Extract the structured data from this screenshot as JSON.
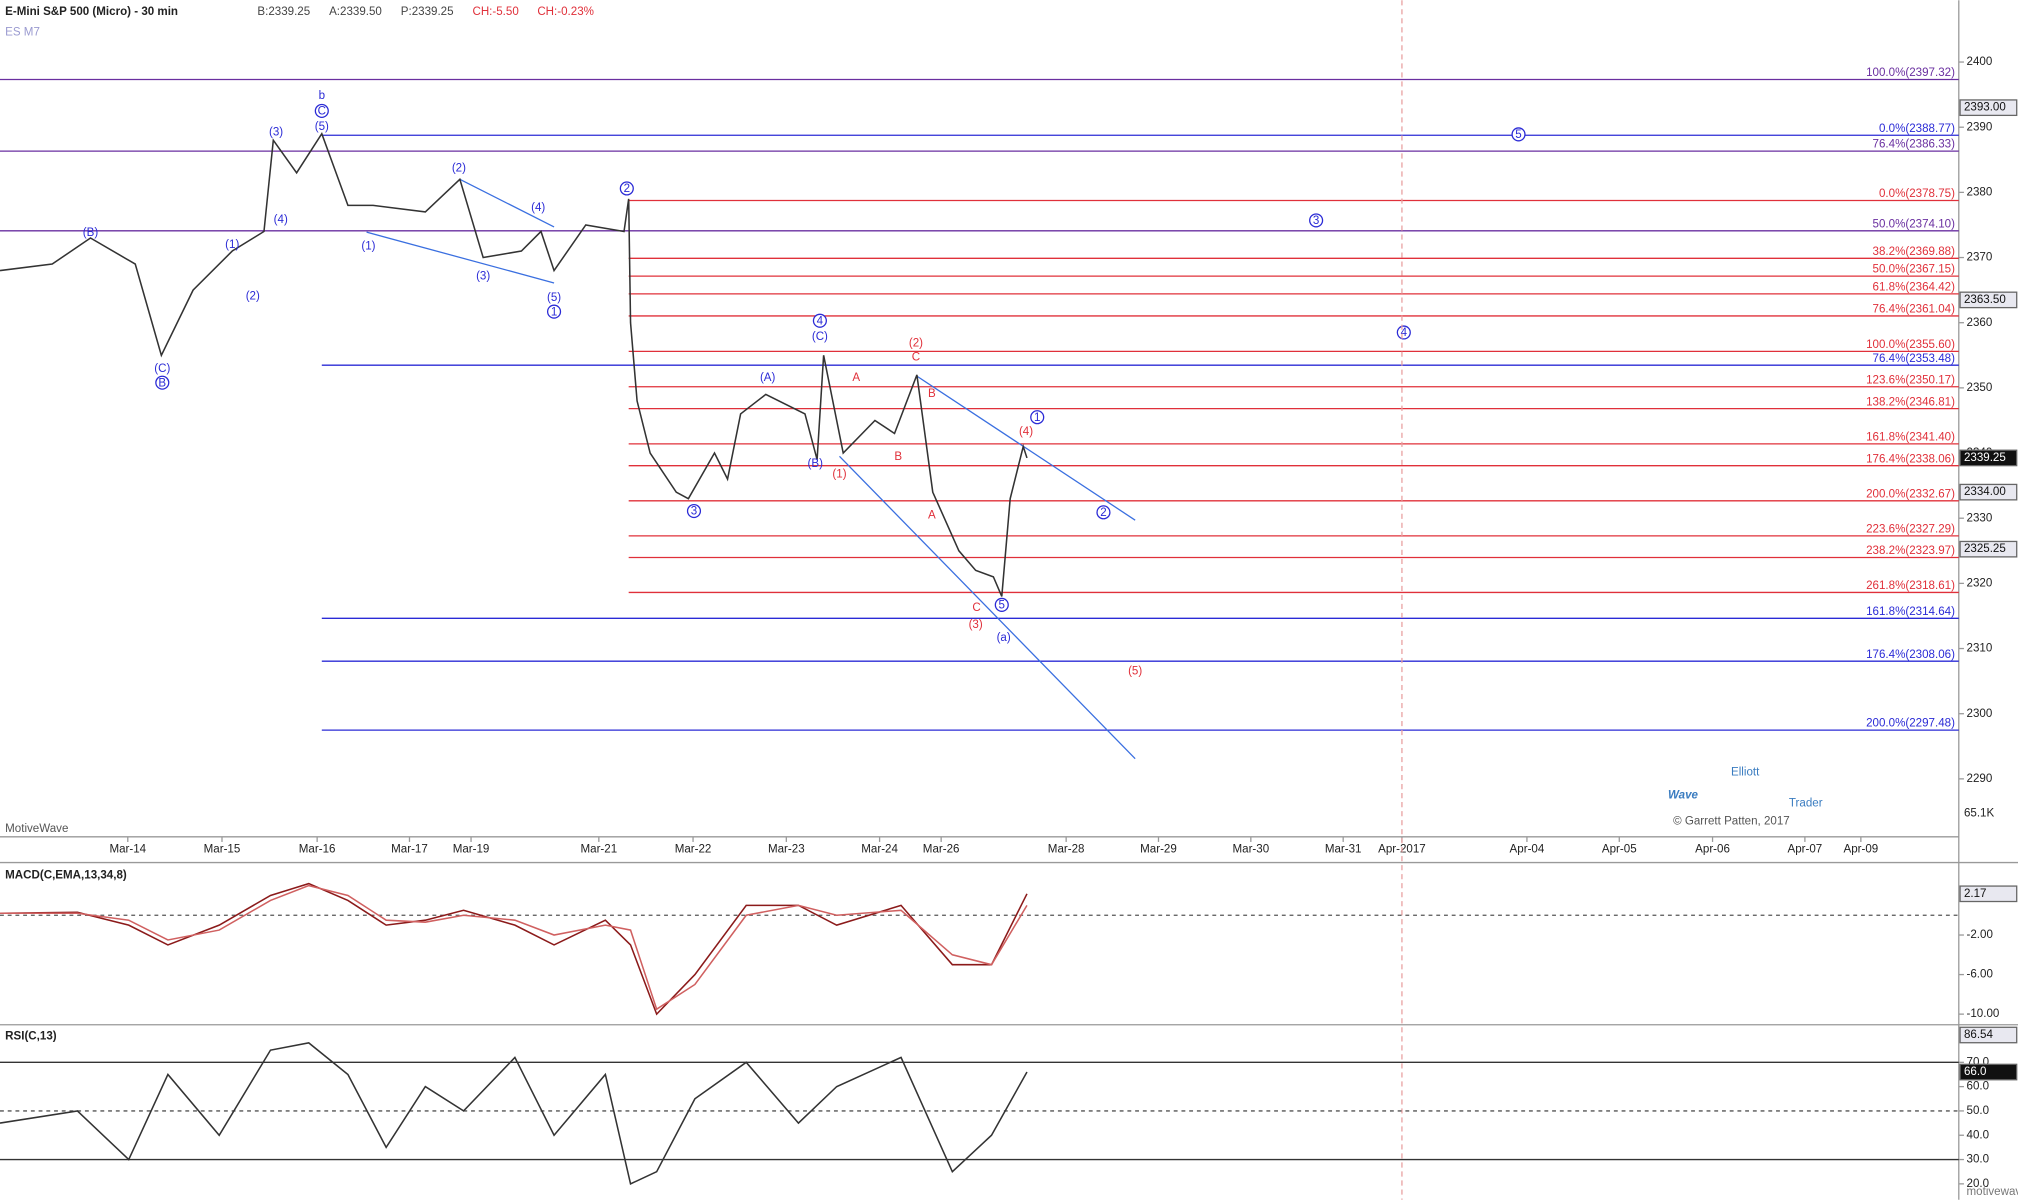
{
  "chart_data": [
    {
      "type": "line",
      "title": "E-Mini S&P 500 (Micro) - 30 min",
      "symbol": "ES M7",
      "quote": [
        "B:2339.25",
        "A:2339.50",
        "P:2339.25",
        "CH:-5.50",
        "CH:-0.23%"
      ],
      "quote_colors": [
        "#444444",
        "#444444",
        "#444444",
        "#e0303a",
        "#e0303a"
      ],
      "xlim": [
        -1.37,
        19.63
      ],
      "xticks": [
        {
          "value": 0,
          "label": "Mar-14"
        },
        {
          "value": 1.01,
          "label": "Mar-15"
        },
        {
          "value": 2.03,
          "label": "Mar-16"
        },
        {
          "value": 3.02,
          "label": "Mar-17"
        },
        {
          "value": 3.68,
          "label": "Mar-19"
        },
        {
          "value": 5.05,
          "label": "Mar-21"
        },
        {
          "value": 6.06,
          "label": "Mar-22"
        },
        {
          "value": 7.06,
          "label": "Mar-23"
        },
        {
          "value": 8.06,
          "label": "Mar-24"
        },
        {
          "value": 8.72,
          "label": "Mar-26"
        },
        {
          "value": 10.06,
          "label": "Mar-28"
        },
        {
          "value": 11.05,
          "label": "Mar-29"
        },
        {
          "value": 12.04,
          "label": "Mar-30"
        },
        {
          "value": 13.03,
          "label": "Mar-31"
        },
        {
          "value": 13.66,
          "label": "Apr-2017"
        },
        {
          "value": 15.0,
          "label": "Apr-04"
        },
        {
          "value": 15.99,
          "label": "Apr-05"
        },
        {
          "value": 16.99,
          "label": "Apr-06"
        },
        {
          "value": 17.98,
          "label": "Apr-07"
        },
        {
          "value": 18.58,
          "label": "Apr-09"
        }
      ],
      "ylim": [
        2281.11,
        2409.48
      ],
      "yticks": [
        2290,
        2300,
        2310,
        2320,
        2330,
        2340,
        2350,
        2360,
        2370,
        2380,
        2390,
        2400
      ],
      "x": [
        -1.37,
        -0.81,
        -0.4,
        0.08,
        0.36,
        0.7,
        1.12,
        1.46,
        1.56,
        1.81,
        2.08,
        2.36,
        2.63,
        3.19,
        3.56,
        3.81,
        4.22,
        4.43,
        4.57,
        4.91,
        5.32,
        5.37,
        5.39,
        5.46,
        5.6,
        5.88,
        6.01,
        6.29,
        6.43,
        6.57,
        6.84,
        7.26,
        7.39,
        7.46,
        7.67,
        8.01,
        8.22,
        8.46,
        8.63,
        8.91,
        9.09,
        9.28,
        9.37,
        9.46,
        9.6,
        9.64
      ],
      "values": [
        2368,
        2369,
        2373,
        2369,
        2355,
        2365,
        2371,
        2374,
        2388,
        2383,
        2389,
        2378,
        2378,
        2377,
        2382,
        2370,
        2371,
        2374,
        2368,
        2375,
        2374,
        2379,
        2360,
        2348,
        2340,
        2334,
        2333,
        2340,
        2336,
        2346,
        2349,
        2346,
        2339,
        2355,
        2340,
        2345,
        2343,
        2352,
        2334,
        2325,
        2322,
        2321,
        2318,
        2333,
        2341,
        2339.25
      ],
      "color": "#333333",
      "levels": [
        {
          "value": 2397.32,
          "label": "100.0%(2397.32)",
          "color": "#6a2fa0"
        },
        {
          "value": 2388.77,
          "label": "0.0%(2388.77)",
          "color": "#2b2bd6",
          "from": 2.08
        },
        {
          "value": 2386.33,
          "label": "76.4%(2386.33)",
          "color": "#6a2fa0"
        },
        {
          "value": 2378.75,
          "label": "0.0%(2378.75)",
          "color": "#e0303a",
          "from": 5.37
        },
        {
          "value": 2374.1,
          "label": "50.0%(2374.10)",
          "color": "#6a2fa0"
        },
        {
          "value": 2369.88,
          "label": "38.2%(2369.88)",
          "color": "#e0303a",
          "from": 5.37
        },
        {
          "value": 2367.15,
          "label": "50.0%(2367.15)",
          "color": "#e0303a",
          "from": 5.37
        },
        {
          "value": 2364.42,
          "label": "61.8%(2364.42)",
          "color": "#e0303a",
          "from": 5.37
        },
        {
          "value": 2361.04,
          "label": "76.4%(2361.04)",
          "color": "#e0303a",
          "from": 5.37
        },
        {
          "value": 2355.6,
          "label": "100.0%(2355.60)",
          "color": "#e0303a",
          "from": 5.37
        },
        {
          "value": 2353.48,
          "label": "76.4%(2353.48)",
          "color": "#2b2bd6",
          "from": 2.08
        },
        {
          "value": 2350.17,
          "label": "123.6%(2350.17)",
          "color": "#e0303a",
          "from": 5.37
        },
        {
          "value": 2346.81,
          "label": "138.2%(2346.81)",
          "color": "#e0303a",
          "from": 5.37
        },
        {
          "value": 2341.4,
          "label": "161.8%(2341.40)",
          "color": "#e0303a",
          "from": 5.37
        },
        {
          "value": 2338.06,
          "label": "176.4%(2338.06)",
          "color": "#e0303a",
          "from": 5.37
        },
        {
          "value": 2332.67,
          "label": "200.0%(2332.67)",
          "color": "#e0303a",
          "from": 5.37
        },
        {
          "value": 2327.29,
          "label": "223.6%(2327.29)",
          "color": "#e0303a",
          "from": 5.37
        },
        {
          "value": 2323.97,
          "label": "238.2%(2323.97)",
          "color": "#e0303a",
          "from": 5.37
        },
        {
          "value": 2318.61,
          "label": "261.8%(2318.61)",
          "color": "#e0303a",
          "from": 5.37
        },
        {
          "value": 2314.64,
          "label": "161.8%(2314.64)",
          "color": "#2b2bd6",
          "from": 2.08
        },
        {
          "value": 2308.06,
          "label": "176.4%(2308.06)",
          "color": "#2b2bd6",
          "from": 2.08
        },
        {
          "value": 2297.48,
          "label": "200.0%(2297.48)",
          "color": "#2b2bd6",
          "from": 2.08
        }
      ],
      "trendlines": [
        [
          3.56,
          2382,
          4.57,
          2374.7
        ],
        [
          2.56,
          2373.9,
          4.57,
          2366.1
        ],
        [
          7.63,
          2339.5,
          10.8,
          2293.1
        ],
        [
          8.46,
          2351.8,
          10.8,
          2329.7
        ]
      ],
      "annotations": [
        {
          "text": "(B)",
          "x": -0.4,
          "y": 2373.9,
          "color": "#2b2bd6"
        },
        {
          "text": "(C)",
          "x": 0.37,
          "y": 2353.0,
          "color": "#2b2bd6"
        },
        {
          "text": "B",
          "x": 0.37,
          "y": 2350.8,
          "color": "#2b2bd6",
          "circled": true
        },
        {
          "text": "(1)",
          "x": 1.12,
          "y": 2372.0,
          "color": "#2b2bd6"
        },
        {
          "text": "(2)",
          "x": 1.34,
          "y": 2364.1,
          "color": "#2b2bd6"
        },
        {
          "text": "(3)",
          "x": 1.59,
          "y": 2389.3,
          "color": "#2b2bd6"
        },
        {
          "text": "(4)",
          "x": 1.64,
          "y": 2375.9,
          "color": "#2b2bd6"
        },
        {
          "text": "b",
          "x": 2.08,
          "y": 2394.9,
          "color": "#2b2bd6"
        },
        {
          "text": "C",
          "x": 2.08,
          "y": 2392.5,
          "color": "#2b2bd6",
          "circled": true
        },
        {
          "text": "(5)",
          "x": 2.08,
          "y": 2390.1,
          "color": "#2b2bd6"
        },
        {
          "text": "(1)",
          "x": 2.58,
          "y": 2371.8,
          "color": "#2b2bd6"
        },
        {
          "text": "(2)",
          "x": 3.55,
          "y": 2383.8,
          "color": "#2b2bd6"
        },
        {
          "text": "(3)",
          "x": 3.81,
          "y": 2367.2,
          "color": "#2b2bd6"
        },
        {
          "text": "(4)",
          "x": 4.4,
          "y": 2377.7,
          "color": "#2b2bd6"
        },
        {
          "text": "(5)",
          "x": 4.57,
          "y": 2363.9,
          "color": "#2b2bd6"
        },
        {
          "text": "1",
          "x": 4.57,
          "y": 2361.7,
          "color": "#2b2bd6",
          "circled": true
        },
        {
          "text": "2",
          "x": 5.35,
          "y": 2380.6,
          "color": "#2b2bd6",
          "circled": true
        },
        {
          "text": "3",
          "x": 6.07,
          "y": 2331.1,
          "color": "#2b2bd6",
          "circled": true
        },
        {
          "text": "(A)",
          "x": 6.86,
          "y": 2351.6,
          "color": "#2b2bd6"
        },
        {
          "text": "4",
          "x": 7.42,
          "y": 2360.3,
          "color": "#2b2bd6",
          "circled": true
        },
        {
          "text": "(C)",
          "x": 7.42,
          "y": 2357.9,
          "color": "#2b2bd6"
        },
        {
          "text": "(B)",
          "x": 7.37,
          "y": 2338.4,
          "color": "#2b2bd6"
        },
        {
          "text": "(1)",
          "x": 7.63,
          "y": 2336.8,
          "color": "#e0303a"
        },
        {
          "text": "A",
          "x": 7.81,
          "y": 2351.6,
          "color": "#e0303a"
        },
        {
          "text": "B",
          "x": 8.26,
          "y": 2339.5,
          "color": "#e0303a"
        },
        {
          "text": "(2)",
          "x": 8.45,
          "y": 2356.9,
          "color": "#e0303a"
        },
        {
          "text": "C",
          "x": 8.45,
          "y": 2354.8,
          "color": "#e0303a"
        },
        {
          "text": "B",
          "x": 8.62,
          "y": 2349.2,
          "color": "#e0303a"
        },
        {
          "text": "A",
          "x": 8.62,
          "y": 2330.5,
          "color": "#e0303a"
        },
        {
          "text": "C",
          "x": 9.1,
          "y": 2316.3,
          "color": "#e0303a"
        },
        {
          "text": "(3)",
          "x": 9.09,
          "y": 2313.7,
          "color": "#e0303a"
        },
        {
          "text": "5",
          "x": 9.37,
          "y": 2316.7,
          "color": "#2b2bd6",
          "circled": true
        },
        {
          "text": "(a)",
          "x": 9.39,
          "y": 2311.7,
          "color": "#2b2bd6"
        },
        {
          "text": "(4)",
          "x": 9.63,
          "y": 2343.3,
          "color": "#e0303a"
        },
        {
          "text": "1",
          "x": 9.75,
          "y": 2345.5,
          "color": "#2b2bd6",
          "circled": true
        },
        {
          "text": "2",
          "x": 10.46,
          "y": 2330.9,
          "color": "#2b2bd6",
          "circled": true
        },
        {
          "text": "(5)",
          "x": 10.8,
          "y": 2306.6,
          "color": "#e0303a"
        },
        {
          "text": "3",
          "x": 12.74,
          "y": 2375.7,
          "color": "#2b2bd6",
          "circled": true
        },
        {
          "text": "4",
          "x": 13.68,
          "y": 2358.5,
          "color": "#2b2bd6",
          "circled": true
        },
        {
          "text": "5",
          "x": 14.91,
          "y": 2388.9,
          "color": "#2b2bd6",
          "circled": true
        }
      ],
      "markers": [
        {
          "value": 2393,
          "label": "2393.00"
        },
        {
          "value": 2363.5,
          "label": "2363.50"
        },
        {
          "value": 2339.25,
          "label": "2339.25",
          "dark": true
        },
        {
          "value": 2334,
          "label": "2334.00"
        },
        {
          "value": 2325.25,
          "label": "2325.25"
        }
      ],
      "vline": 13.66,
      "volume_label": "65.1K",
      "source": "MotiveWave"
    },
    {
      "type": "line",
      "title": "MACD(C,EMA,13,34,8)",
      "xlim": [
        -1.37,
        19.63
      ],
      "ylim": [
        -11.07,
        5.33
      ],
      "yticks": [
        {
          "value": -2,
          "label": "-2.00"
        },
        {
          "value": -6,
          "label": "-6.00"
        },
        {
          "value": -10,
          "label": "-10.00"
        }
      ],
      "zero": 0,
      "x": [
        -1.37,
        -0.54,
        0.01,
        0.43,
        0.98,
        1.53,
        1.94,
        2.36,
        2.77,
        3.19,
        3.6,
        4.15,
        4.57,
        5.12,
        5.39,
        5.67,
        6.08,
        6.63,
        7.19,
        7.6,
        8.29,
        8.84,
        9.26,
        9.64
      ],
      "series": [
        {
          "color": "#8b1a1a",
          "values": [
            0.2,
            0.3,
            -1,
            -3,
            -1,
            2,
            3.2,
            1.5,
            -1,
            -0.5,
            0.5,
            -1,
            -3,
            -0.5,
            -3,
            -10,
            -6,
            1,
            1,
            -1,
            1,
            -5,
            -5,
            2.17
          ]
        },
        {
          "color": "#d06060",
          "values": [
            0.2,
            0.2,
            -0.5,
            -2.5,
            -1.5,
            1.5,
            3,
            2,
            -0.5,
            -0.7,
            0,
            -0.5,
            -2,
            -1,
            -1.5,
            -9.5,
            -7,
            0,
            1,
            0,
            0.5,
            -4,
            -5,
            1
          ]
        }
      ],
      "markers": [
        {
          "value": 2.17,
          "label": "2.17"
        }
      ]
    },
    {
      "type": "line",
      "title": "RSI(C,13)",
      "xlim": [
        -1.37,
        19.63
      ],
      "ylim": [
        13.47,
        85.47
      ],
      "yticks": [
        {
          "value": 20,
          "label": "20.0"
        },
        {
          "value": 30,
          "label": "30.0"
        },
        {
          "value": 40,
          "label": "40.0"
        },
        {
          "value": 50,
          "label": "50.0"
        },
        {
          "value": 60,
          "label": "60.0"
        },
        {
          "value": 70,
          "label": "70.0"
        }
      ],
      "bands": [
        30,
        70
      ],
      "mid": 50,
      "x": [
        -1.37,
        -0.54,
        0.01,
        0.43,
        0.98,
        1.53,
        1.94,
        2.36,
        2.77,
        3.19,
        3.6,
        4.15,
        4.57,
        5.12,
        5.39,
        5.67,
        6.08,
        6.63,
        7.19,
        7.6,
        8.29,
        8.84,
        9.26,
        9.64
      ],
      "series": [
        {
          "color": "#333333",
          "values": [
            45,
            50,
            30,
            65,
            40,
            75,
            78,
            65,
            35,
            60,
            50,
            72,
            40,
            65,
            20,
            25,
            55,
            70,
            45,
            60,
            72,
            25,
            40,
            66
          ]
        }
      ],
      "markers": [
        {
          "value": 86.54,
          "label": "86.54"
        },
        {
          "value": 66,
          "label": "66.0",
          "dark": true
        }
      ]
    }
  ],
  "watermark": {
    "top": "Elliott",
    "main": "Wave",
    "side": "Trader",
    "copyright": "© Garrett Patten, 2017"
  },
  "footer": "motivewave.com"
}
